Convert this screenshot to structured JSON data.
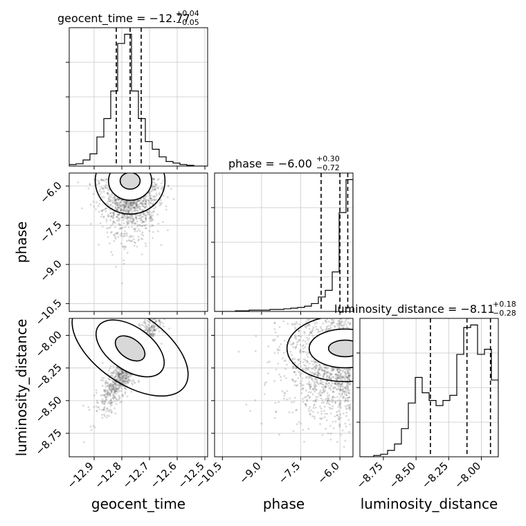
{
  "chart_data": {
    "type": "corner",
    "parameters": [
      {
        "name": "geocent_time",
        "label": "geocent_time",
        "range": [
          -12.99,
          -12.49
        ],
        "ticks": [
          -12.9,
          -12.8,
          -12.7,
          -12.6,
          -12.5
        ],
        "tick_labels": [
          "−12.9",
          "−12.8",
          "−12.7",
          "−12.6",
          "−12.5"
        ],
        "title_main": "geocent_time = −12.77",
        "title_plus": "+0.04",
        "title_minus": "−0.05",
        "quantiles": [
          -12.82,
          -12.77,
          -12.73
        ]
      },
      {
        "name": "phase",
        "label": "phase",
        "range": [
          -10.8,
          -5.5
        ],
        "ticks": [
          -10.5,
          -9.0,
          -7.5,
          -6.0
        ],
        "tick_labels": [
          "−10.5",
          "−9.0",
          "−7.5",
          "−6.0"
        ],
        "title_main": "phase = −6.00",
        "title_plus": "+0.30",
        "title_minus": "−0.72",
        "quantiles": [
          -6.72,
          -6.0,
          -5.7
        ]
      },
      {
        "name": "luminosity_distance",
        "label": "luminosity_distance",
        "range": [
          -8.93,
          -7.87
        ],
        "ticks": [
          -8.75,
          -8.5,
          -8.25,
          -8.0
        ],
        "tick_labels": [
          "−8.75",
          "−8.50",
          "−8.25",
          "−8.00"
        ],
        "title_main": "luminosity_distance = −8.11",
        "title_plus": "+0.18",
        "title_minus": "−0.28",
        "quantiles": [
          -8.39,
          -8.11,
          -7.93
        ]
      }
    ],
    "histograms": [
      {
        "edges_start": -12.99,
        "bin_width": 0.025,
        "counts": [
          2,
          3,
          8,
          16,
          38,
          62,
          98,
          160,
          172,
          98,
          62,
          32,
          22,
          12,
          6,
          4,
          2,
          1,
          0,
          0
        ]
      },
      {
        "edges_start": -10.8,
        "bin_width": 0.265,
        "counts": [
          0,
          0,
          0,
          1,
          1,
          2,
          2,
          2,
          3,
          3,
          4,
          5,
          6,
          8,
          12,
          22,
          32,
          60,
          150,
          200
        ]
      },
      {
        "edges_start": -8.93,
        "bin_width": 0.053,
        "counts": [
          0,
          0,
          1,
          2,
          5,
          10,
          22,
          42,
          62,
          50,
          44,
          40,
          44,
          48,
          80,
          101,
          103,
          80,
          84,
          60
        ]
      }
    ],
    "scatter_centers": [
      {
        "x": 0,
        "y": 1,
        "cx": -12.77,
        "cy": -6.8,
        "sx": 0.05,
        "sy": 1.0
      },
      {
        "x": 0,
        "y": 2,
        "cx": -12.77,
        "cy": -8.2,
        "sx": 0.05,
        "sy": 0.22
      },
      {
        "x": 1,
        "y": 2,
        "cx": -6.6,
        "cy": -8.2,
        "sx": 1.2,
        "sy": 0.22
      }
    ],
    "grid": true
  }
}
